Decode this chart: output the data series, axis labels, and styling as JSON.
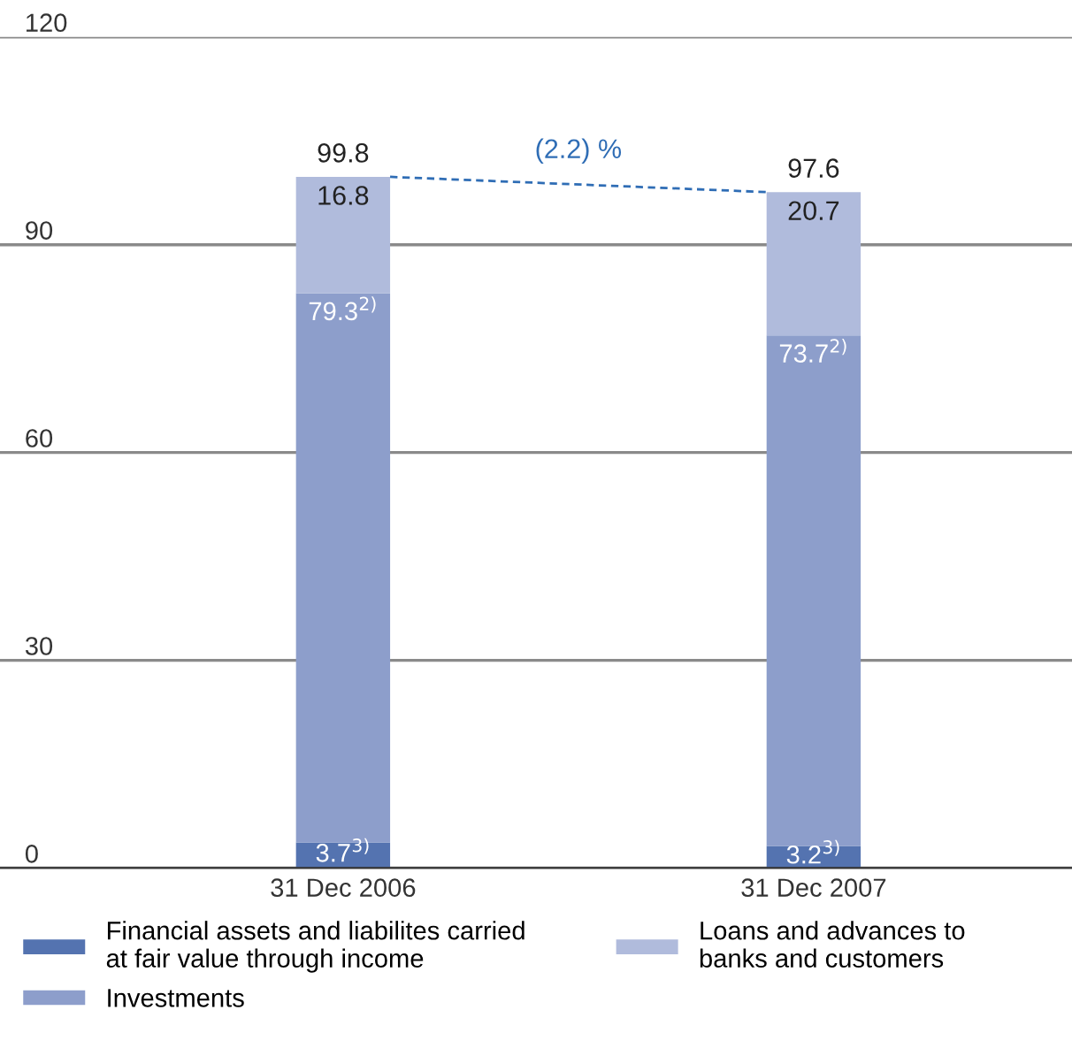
{
  "chart_data": {
    "type": "bar",
    "stacked": true,
    "categories": [
      "31 Dec 2006",
      "31 Dec 2007"
    ],
    "series": [
      {
        "name": "Financial assets and liabilites carried\nat fair value through income",
        "color": "#5473b0",
        "values": [
          3.7,
          3.2
        ],
        "value_labels": [
          "3.7$^{3)}$",
          "3.2$^{3)}$"
        ]
      },
      {
        "name": "Investments",
        "color": "#8d9ecb",
        "values": [
          79.3,
          73.7
        ],
        "value_labels": [
          "79.3$^{2)}$",
          "73.7$^{2)}$"
        ]
      },
      {
        "name": "Loans and advances to\nbanks and customers",
        "color": "#b0bbdc",
        "values": [
          16.8,
          20.7
        ],
        "value_labels": [
          "16.8",
          "20.7"
        ]
      }
    ],
    "totals": [
      "99.8",
      "97.6"
    ],
    "annotations": [
      "(2.2) %"
    ],
    "ylim": [
      0,
      120
    ],
    "yticks": [
      0,
      30,
      60,
      90,
      120
    ],
    "grid": "y",
    "legend": "bottom"
  }
}
